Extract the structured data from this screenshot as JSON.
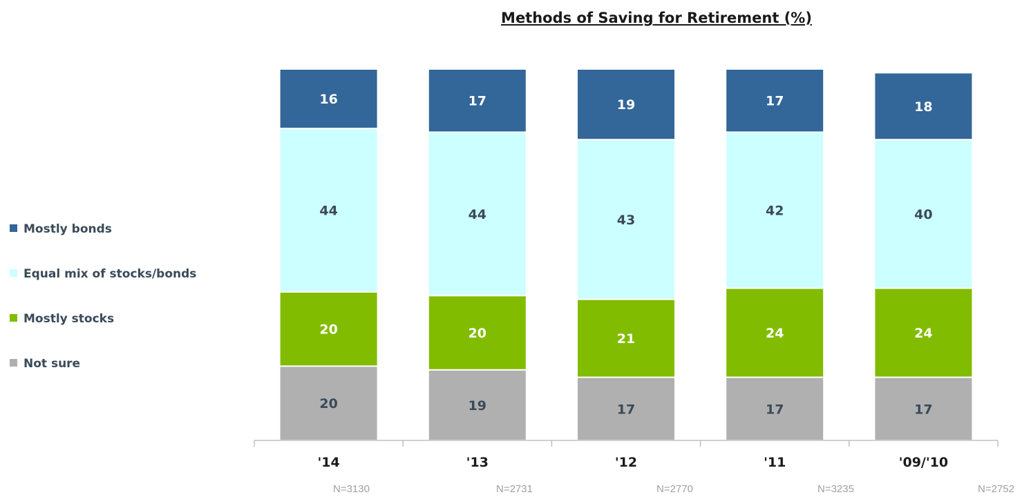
{
  "chart_data": {
    "type": "bar",
    "stacked": true,
    "title": "Methods of Saving for Retirement (%)",
    "categories": [
      "'14",
      "'13",
      "'12",
      "'11",
      "'09/'10"
    ],
    "series": [
      {
        "name": "Not sure",
        "values": [
          20,
          19,
          17,
          17,
          17
        ],
        "color": "#b0b0b0",
        "label_color": "#3a4a58"
      },
      {
        "name": "Mostly stocks",
        "values": [
          20,
          20,
          21,
          24,
          24
        ],
        "color": "#82bc00",
        "label_color": "#ffffff"
      },
      {
        "name": "Equal mix of stocks/bonds",
        "values": [
          44,
          44,
          43,
          42,
          40
        ],
        "color": "#ccffff",
        "label_color": "#3a4a58"
      },
      {
        "name": "Mostly bonds",
        "values": [
          16,
          17,
          19,
          17,
          18
        ],
        "color": "#336699",
        "label_color": "#ffffff"
      }
    ],
    "legend_order": [
      "Mostly bonds",
      "Equal mix of stocks/bonds",
      "Mostly stocks",
      "Not sure"
    ],
    "legend_position": "left",
    "sample_sizes": [
      "N=3130",
      "N=2731",
      "N=2770",
      "N=3235",
      "N=2752"
    ],
    "ylim": [
      0,
      100
    ],
    "grid": false
  }
}
